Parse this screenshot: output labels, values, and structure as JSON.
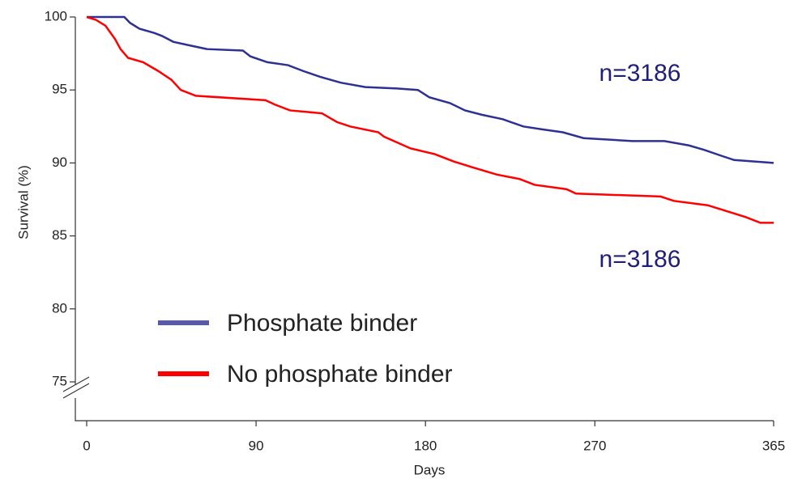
{
  "chart_data": {
    "type": "line",
    "xlabel": "Days",
    "ylabel": "Survival (%)",
    "xlim": [
      0,
      365
    ],
    "ylim": [
      75,
      100
    ],
    "xticks": [
      0,
      90,
      180,
      270,
      365
    ],
    "yticks": [
      75,
      80,
      85,
      90,
      95,
      100
    ],
    "legend": "lower left",
    "annotations": [
      "n=3186",
      "n=3186"
    ],
    "series": [
      {
        "name": "Phosphate binder",
        "color": "#2e3192",
        "x": [
          0,
          20,
          23,
          28,
          36,
          40,
          46,
          53,
          64,
          83,
          87,
          96,
          107,
          115,
          124,
          135,
          148,
          165,
          176,
          182,
          193,
          201,
          210,
          221,
          232,
          242,
          253,
          264,
          290,
          307,
          320,
          328,
          337,
          344,
          365
        ],
        "values": [
          100,
          100,
          99.6,
          99.2,
          98.9,
          98.7,
          98.3,
          98.1,
          97.8,
          97.7,
          97.3,
          96.9,
          96.7,
          96.3,
          95.9,
          95.5,
          95.2,
          95.1,
          95.0,
          94.5,
          94.1,
          93.6,
          93.3,
          93.0,
          92.5,
          92.3,
          92.1,
          91.7,
          91.5,
          91.5,
          91.2,
          90.9,
          90.5,
          90.2,
          90.0
        ]
      },
      {
        "name": "No phosphate binder",
        "color": "#ff0000",
        "x": [
          0,
          5,
          10,
          15,
          18,
          22,
          30,
          38,
          45,
          50,
          58,
          95,
          100,
          108,
          125,
          133,
          140,
          155,
          158,
          165,
          172,
          185,
          195,
          205,
          218,
          230,
          238,
          255,
          260,
          305,
          312,
          330,
          340,
          350,
          358,
          365
        ],
        "values": [
          100,
          99.8,
          99.4,
          98.5,
          97.8,
          97.2,
          96.9,
          96.3,
          95.7,
          95.0,
          94.6,
          94.3,
          94.0,
          93.6,
          93.4,
          92.8,
          92.5,
          92.1,
          91.8,
          91.4,
          91.0,
          90.6,
          90.1,
          89.7,
          89.2,
          88.9,
          88.5,
          88.2,
          87.9,
          87.7,
          87.4,
          87.1,
          86.7,
          86.3,
          85.9,
          85.9
        ]
      }
    ]
  }
}
